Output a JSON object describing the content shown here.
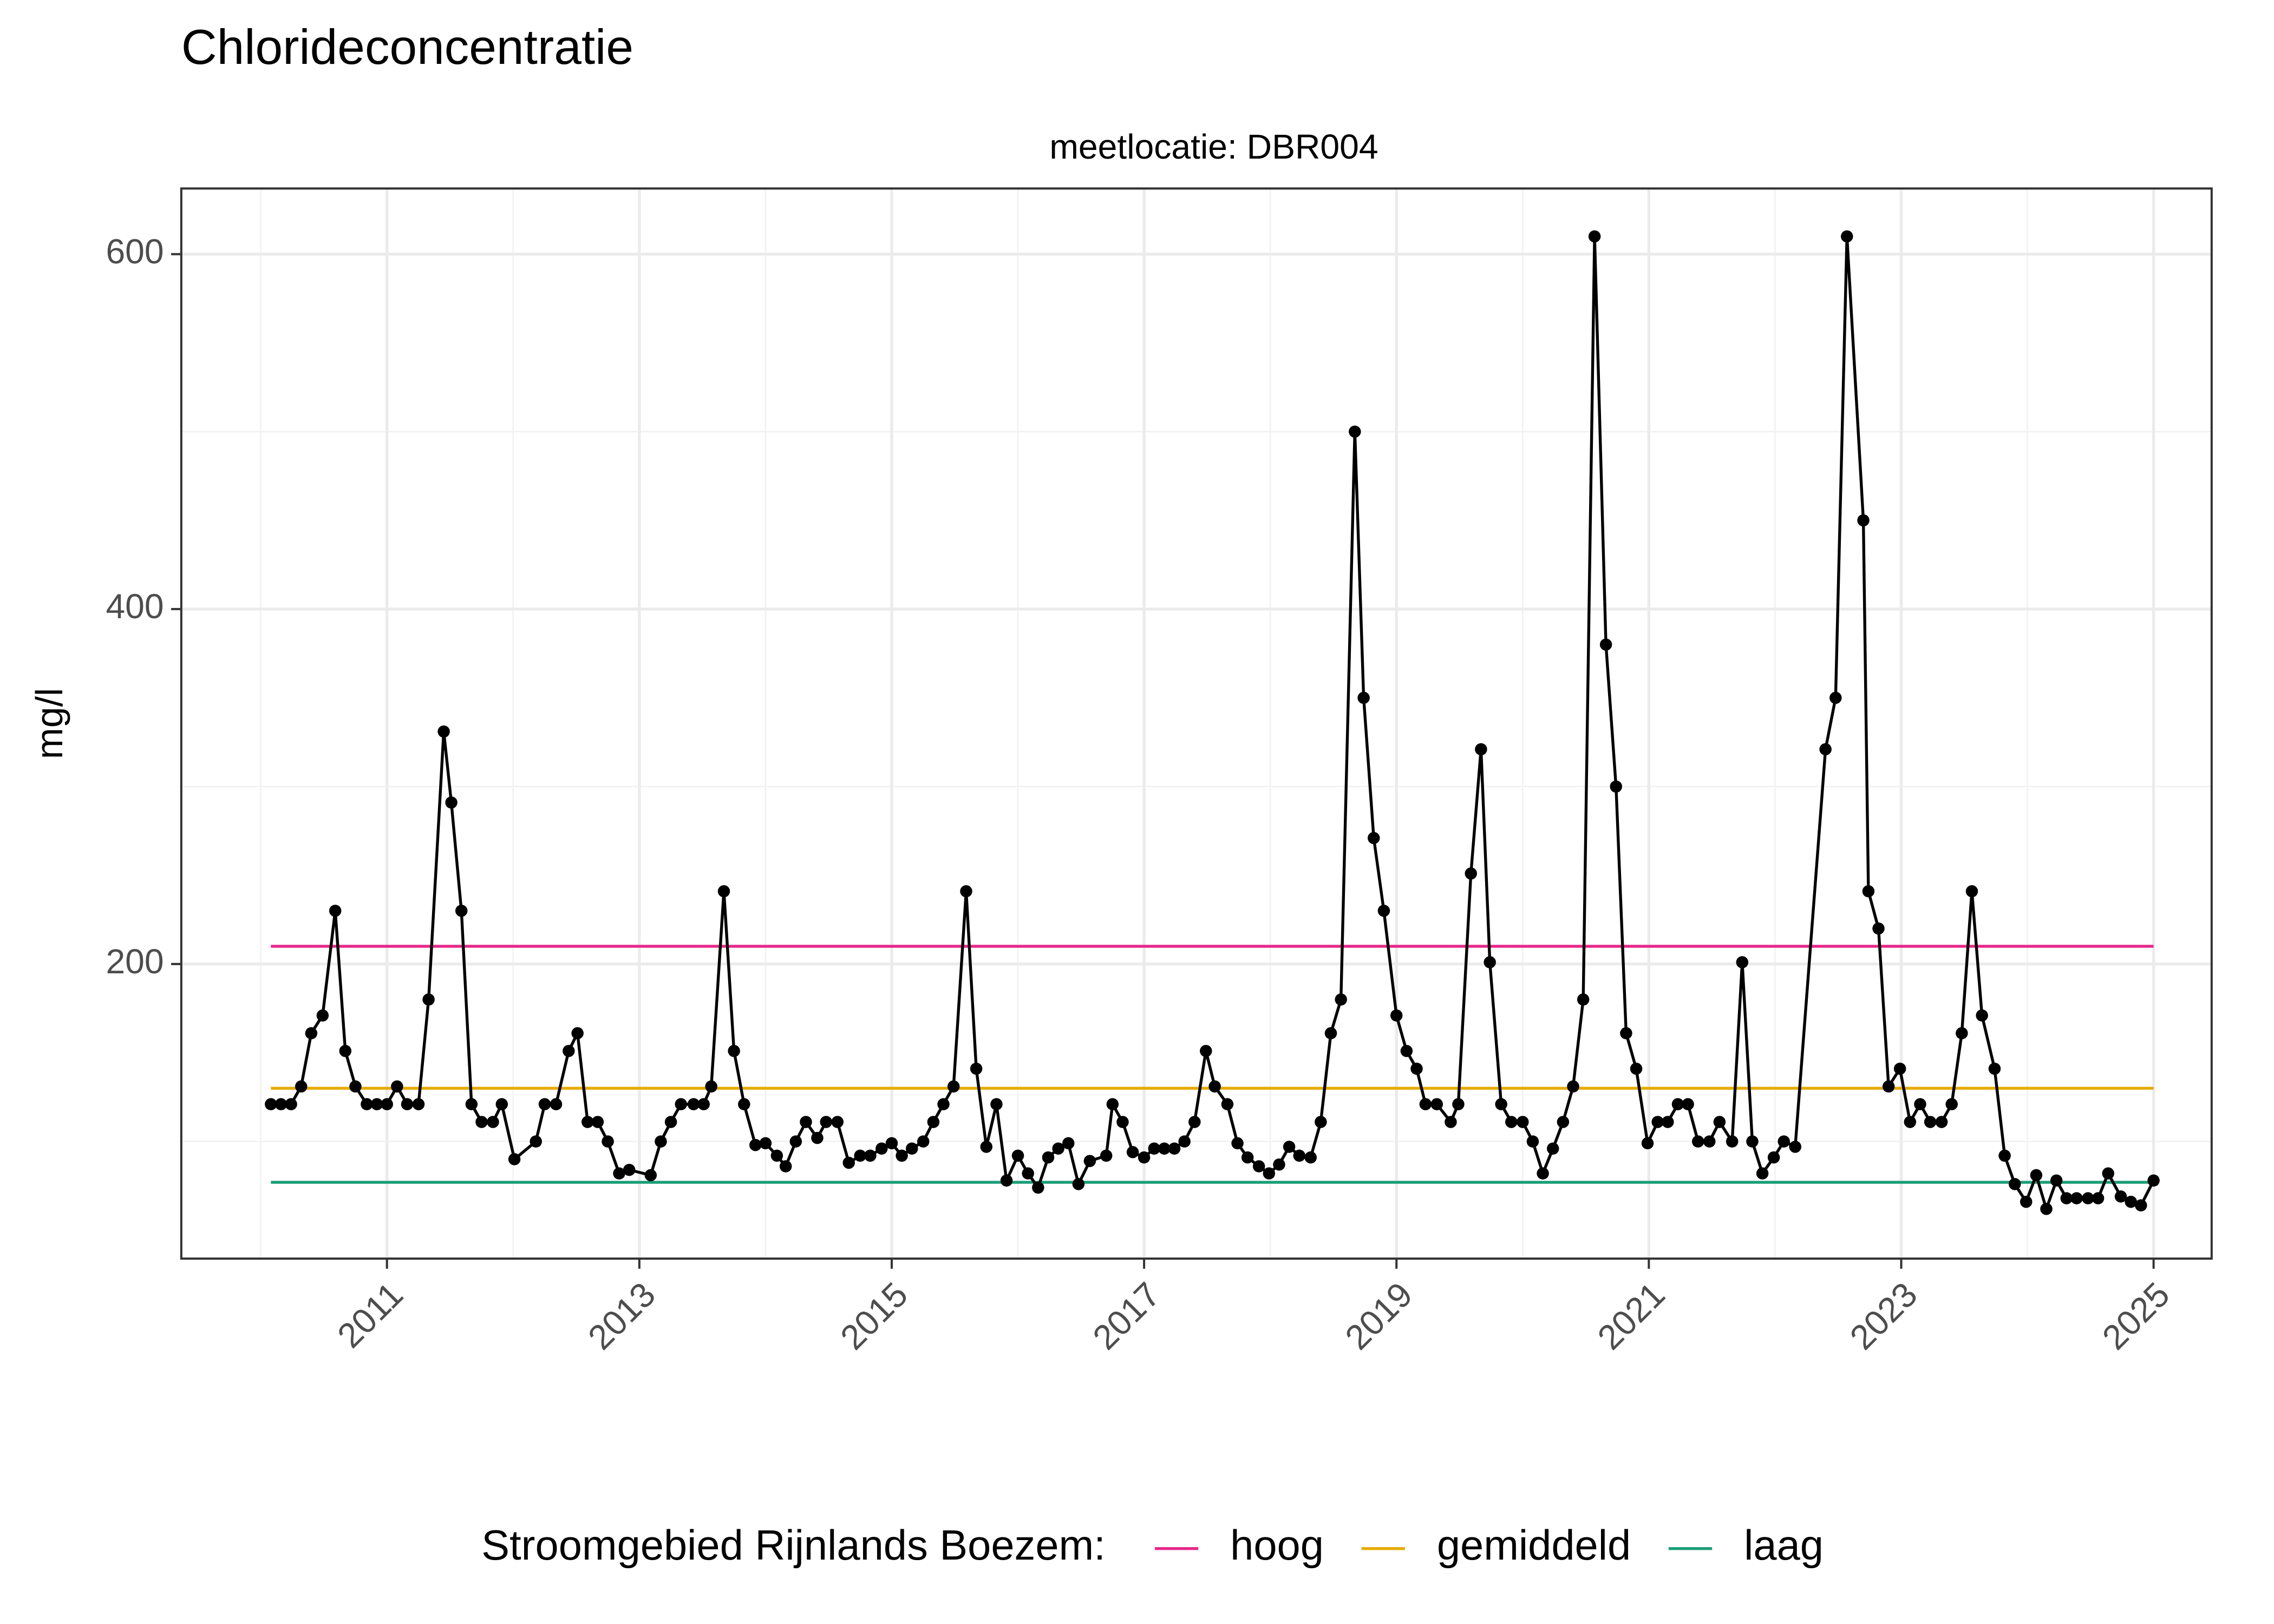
{
  "chart_data": {
    "type": "line",
    "title": "Chlorideconcentratie",
    "subtitle": "meetlocatie: DBR004",
    "y_label": "mg/l",
    "color": "#000000",
    "x": [
      2010.08,
      2010.16,
      2010.24,
      2010.32,
      2010.4,
      2010.49,
      2010.59,
      2010.67,
      2010.75,
      2010.84,
      2010.92,
      2011.0,
      2011.08,
      2011.16,
      2011.25,
      2011.33,
      2011.45,
      2011.51,
      2011.59,
      2011.67,
      2011.75,
      2011.84,
      2011.91,
      2012.01,
      2012.18,
      2012.25,
      2012.34,
      2012.44,
      2012.51,
      2012.59,
      2012.67,
      2012.75,
      2012.84,
      2012.92,
      2013.09,
      2013.17,
      2013.25,
      2013.33,
      2013.43,
      2013.51,
      2013.57,
      2013.67,
      2013.75,
      2013.83,
      2013.92,
      2014.0,
      2014.09,
      2014.16,
      2014.24,
      2014.32,
      2014.41,
      2014.48,
      2014.57,
      2014.66,
      2014.75,
      2014.83,
      2014.92,
      2015.0,
      2015.08,
      2015.16,
      2015.25,
      2015.33,
      2015.41,
      2015.49,
      2015.59,
      2015.67,
      2015.75,
      2015.83,
      2015.91,
      2016.0,
      2016.08,
      2016.16,
      2016.24,
      2016.32,
      2016.4,
      2016.48,
      2016.57,
      2016.7,
      2016.75,
      2016.83,
      2016.91,
      2017.0,
      2017.08,
      2017.16,
      2017.24,
      2017.32,
      2017.4,
      2017.49,
      2017.56,
      2017.66,
      2017.74,
      2017.82,
      2017.91,
      2017.99,
      2018.07,
      2018.15,
      2018.23,
      2018.32,
      2018.4,
      2018.48,
      2018.56,
      2018.67,
      2018.74,
      2018.82,
      2018.9,
      2019.0,
      2019.08,
      2019.16,
      2019.23,
      2019.32,
      2019.43,
      2019.49,
      2019.59,
      2019.67,
      2019.74,
      2019.83,
      2019.91,
      2020.0,
      2020.08,
      2020.16,
      2020.24,
      2020.32,
      2020.4,
      2020.48,
      2020.57,
      2020.66,
      2020.74,
      2020.82,
      2020.9,
      2020.99,
      2021.07,
      2021.15,
      2021.23,
      2021.31,
      2021.39,
      2021.48,
      2021.56,
      2021.66,
      2021.74,
      2021.82,
      2021.9,
      2021.99,
      2022.07,
      2022.16,
      2022.4,
      2022.48,
      2022.57,
      2022.7,
      2022.74,
      2022.82,
      2022.9,
      2022.99,
      2023.07,
      2023.15,
      2023.23,
      2023.32,
      2023.4,
      2023.48,
      2023.56,
      2023.64,
      2023.74,
      2023.82,
      2023.9,
      2023.99,
      2024.07,
      2024.15,
      2024.23,
      2024.31,
      2024.39,
      2024.48,
      2024.56,
      2024.64,
      2024.74,
      2024.82,
      2024.9,
      2025.0
    ],
    "values": [
      121,
      121,
      121,
      131,
      161,
      171,
      230,
      151,
      131,
      121,
      121,
      121,
      131,
      121,
      121,
      180,
      331,
      291,
      230,
      121,
      111,
      111,
      121,
      90,
      100,
      121,
      121,
      151,
      161,
      111,
      111,
      100,
      82,
      84,
      81,
      100,
      111,
      121,
      121,
      121,
      131,
      241,
      151,
      121,
      98,
      99,
      92,
      86,
      100,
      111,
      102,
      111,
      111,
      88,
      92,
      92,
      96,
      99,
      92,
      96,
      100,
      111,
      121,
      131,
      241,
      141,
      97,
      121,
      78,
      92,
      82,
      74,
      91,
      96,
      99,
      76,
      89,
      92,
      121,
      111,
      94,
      91,
      96,
      96,
      96,
      100,
      111,
      151,
      131,
      121,
      99,
      91,
      86,
      82,
      87,
      97,
      92,
      91,
      111,
      161,
      180,
      500,
      350,
      271,
      230,
      171,
      151,
      141,
      121,
      121,
      111,
      121,
      251,
      321,
      201,
      121,
      111,
      111,
      100,
      82,
      96,
      111,
      131,
      180,
      610,
      380,
      300,
      161,
      141,
      99,
      111,
      111,
      121,
      121,
      100,
      100,
      111,
      100,
      201,
      100,
      82,
      91,
      100,
      97,
      321,
      350,
      610,
      450,
      241,
      220,
      131,
      141,
      111,
      121,
      111,
      111,
      121,
      161,
      241,
      171,
      141,
      92,
      76,
      66,
      81,
      62,
      78,
      68,
      68,
      68,
      68,
      82,
      69,
      66,
      64,
      78
    ],
    "reference_lines": [
      {
        "name": "hoog",
        "color": "#e7298a",
        "value": 210
      },
      {
        "name": "gemiddeld",
        "color": "#e6ab02",
        "value": 130
      },
      {
        "name": "laag",
        "color": "#1b9e77",
        "value": 77
      }
    ],
    "legend_title": "Stroomgebied Rijnlands Boezem:",
    "legend_position": "bottom",
    "xlim": [
      2009.37,
      2025.46
    ],
    "xticks": [
      2011,
      2013,
      2015,
      2017,
      2019,
      2021,
      2023,
      2025
    ],
    "x_minor_ticks": [
      2010,
      2012,
      2014,
      2016,
      2018,
      2020,
      2022,
      2024
    ],
    "ylim": [
      34,
      637
    ],
    "yticks": [
      200,
      400,
      600
    ],
    "y_minor_ticks": [
      100,
      300,
      500
    ],
    "grid": true
  }
}
